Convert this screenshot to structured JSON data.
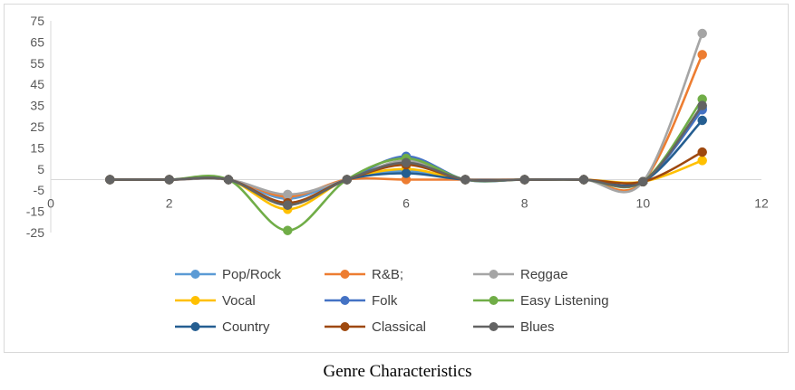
{
  "caption": "Genre Characteristics",
  "chart_data": {
    "type": "line",
    "smooth": true,
    "markers": "circle",
    "xlim": [
      0,
      12
    ],
    "ylim": [
      -25,
      75
    ],
    "x_ticks": [
      0,
      2,
      4,
      6,
      8,
      10,
      12
    ],
    "y_ticks": [
      75,
      65,
      55,
      45,
      35,
      25,
      15,
      5,
      -5,
      -15,
      -25
    ],
    "grid": false,
    "legend_position": "bottom",
    "x": [
      1,
      2,
      3,
      4,
      5,
      6,
      7,
      8,
      9,
      10,
      11
    ],
    "series": [
      {
        "name": "Pop/Rock",
        "color": "#5B9BD5",
        "values": [
          0,
          0,
          0,
          -9,
          0,
          4,
          0,
          0,
          0,
          -1,
          34
        ]
      },
      {
        "name": "R&B;",
        "color": "#ED7D31",
        "values": [
          0,
          0,
          0,
          -8,
          0,
          0,
          0,
          0,
          0,
          -1,
          59
        ]
      },
      {
        "name": "Reggae",
        "color": "#A5A5A5",
        "values": [
          0,
          0,
          0,
          -7,
          0,
          9,
          0,
          0,
          0,
          -1,
          69
        ]
      },
      {
        "name": "Vocal",
        "color": "#FFC000",
        "values": [
          0,
          0,
          0,
          -14,
          0,
          5,
          0,
          0,
          0,
          -1,
          9
        ]
      },
      {
        "name": "Folk",
        "color": "#4472C4",
        "values": [
          0,
          0,
          0,
          -11,
          0,
          11,
          0,
          0,
          0,
          -1,
          33
        ]
      },
      {
        "name": "Easy Listening",
        "color": "#70AD47",
        "values": [
          0,
          0,
          0,
          -24,
          0,
          10,
          0,
          0,
          0,
          -1,
          38
        ]
      },
      {
        "name": "Country",
        "color": "#255E91",
        "values": [
          0,
          0,
          0,
          -12,
          0,
          3,
          0,
          0,
          0,
          -1,
          28
        ]
      },
      {
        "name": "Classical",
        "color": "#9E480E",
        "values": [
          0,
          0,
          0,
          -11,
          0,
          7,
          0,
          0,
          0,
          -1,
          13
        ]
      },
      {
        "name": "Blues",
        "color": "#636363",
        "values": [
          0,
          0,
          0,
          -12,
          0,
          8,
          0,
          0,
          0,
          -1,
          35
        ]
      }
    ]
  }
}
